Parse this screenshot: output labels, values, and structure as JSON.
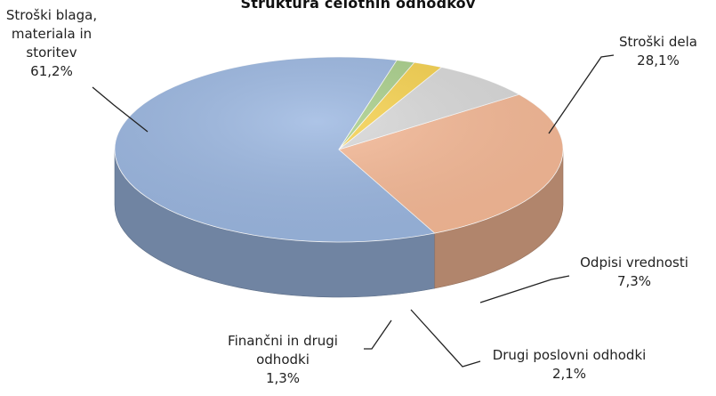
{
  "chart_data": {
    "type": "pie",
    "title": "Struktura celotnih odhodkov",
    "slices": [
      {
        "label_lines": [
          "Stroški blaga,",
          "materiala in",
          "storitev"
        ],
        "value_label": "61,2%",
        "value": 61.2,
        "color": "#9bb7e1"
      },
      {
        "label_lines": [
          "Stroški dela"
        ],
        "value_label": "28,1%",
        "value": 28.1,
        "color": "#f6b996"
      },
      {
        "label_lines": [
          "Odpisi vrednosti"
        ],
        "value_label": "7,3%",
        "value": 7.3,
        "color": "#d9d9d9"
      },
      {
        "label_lines": [
          "Drugi poslovni odhodki"
        ],
        "value_label": "2,1%",
        "value": 2.1,
        "color": "#f7d24e"
      },
      {
        "label_lines": [
          "Finančni in drugi",
          "odhodki"
        ],
        "value_label": "1,3%",
        "value": 1.3,
        "color": "#a9cf8a"
      }
    ]
  }
}
